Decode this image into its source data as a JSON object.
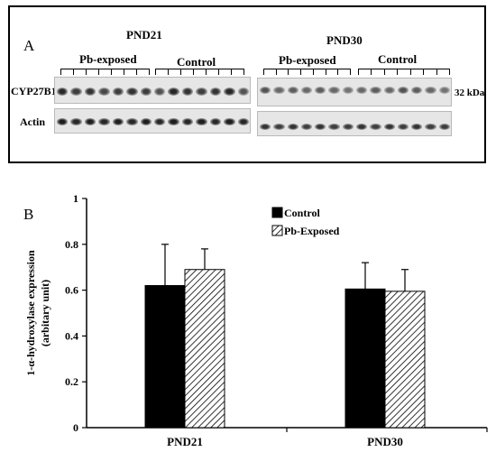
{
  "panel_a": {
    "letter": "A",
    "group_labels": [
      "PND21",
      "PND30"
    ],
    "sub_labels": [
      "Pb-exposed",
      "Control",
      "Pb-exposed",
      "Control"
    ],
    "row_labels": [
      "CYP27B1",
      "Actin"
    ],
    "size_marker": "32 kDa"
  },
  "panel_b": {
    "letter": "B"
  },
  "colors": {
    "control": "#000000",
    "pb_exposed_hatch": "#000000",
    "axis": "#000000"
  },
  "chart_data": {
    "type": "bar",
    "title": "",
    "xlabel": "",
    "ylabel": "1-α-hydroxylase expression",
    "ylabel_line2": "(arbitary unit)",
    "categories": [
      "PND21",
      "PND30"
    ],
    "ylim": [
      0,
      1
    ],
    "yticks": [
      "0",
      "0.2",
      "0.4",
      "0.6",
      "0.8",
      "1"
    ],
    "grid": false,
    "legend_position": "top-right",
    "series": [
      {
        "name": "Control",
        "fill": "solid",
        "values": [
          0.62,
          0.605
        ],
        "errors": [
          0.18,
          0.115
        ]
      },
      {
        "name": "Pb-Exposed",
        "fill": "hatched",
        "values": [
          0.69,
          0.595
        ],
        "errors": [
          0.09,
          0.095
        ]
      }
    ]
  }
}
